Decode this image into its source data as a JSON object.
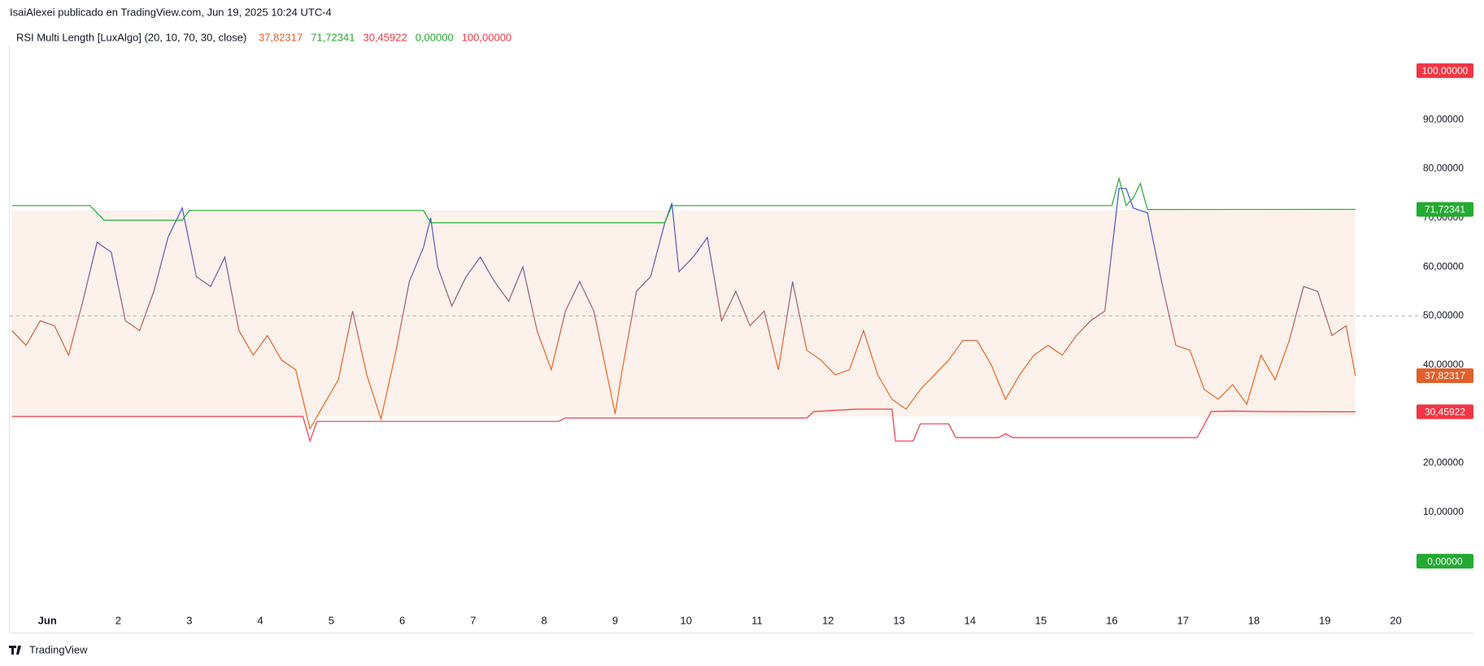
{
  "header": "IsaiAlexei publicado en TradingView.com, Jun 19, 2025 10:24 UTC-4",
  "footer": "TradingView",
  "chart_data": {
    "type": "line",
    "title": "RSI Multi Length [LuxAlgo] (20, 10, 70, 30, close)",
    "xlim": [
      0.47,
      20.2
    ],
    "xticks": [
      {
        "value": 1,
        "label": "Jun"
      },
      2,
      3,
      4,
      5,
      6,
      7,
      8,
      9,
      10,
      11,
      12,
      13,
      14,
      15,
      16,
      17,
      18,
      19,
      20
    ],
    "ylim": [
      -10.1,
      103.8
    ],
    "yticks": [
      {
        "value": 10,
        "label": "10,00000"
      },
      {
        "value": 20,
        "label": "20,00000"
      },
      {
        "value": 30,
        "label": "30,00000"
      },
      {
        "value": 40,
        "label": "40,00000"
      },
      {
        "value": 50,
        "label": "50,00000"
      },
      {
        "value": 60,
        "label": "60,00000"
      },
      {
        "value": 70,
        "label": "70,00000"
      },
      {
        "value": 80,
        "label": "80,00000"
      },
      {
        "value": 90,
        "label": "90,00000"
      }
    ],
    "midline": 50,
    "levels": [
      {
        "value": 100,
        "label": "100,00000",
        "color": "#f23645"
      },
      {
        "value": 0,
        "label": "0,00000",
        "color": "#22ab30"
      }
    ],
    "series": [
      {
        "color": "#e0602a",
        "last_value_label": "37,82317",
        "x": [
          0.5,
          0.7,
          0.9,
          1.1,
          1.3,
          1.5,
          1.7,
          1.9,
          2.1,
          2.3,
          2.5,
          2.7,
          2.9,
          3.1,
          3.3,
          3.5,
          3.7,
          3.9,
          4.1,
          4.3,
          4.5,
          4.7,
          4.9,
          5.1,
          5.3,
          5.5,
          5.7,
          5.9,
          6.1,
          6.3,
          6.4,
          6.5,
          6.7,
          6.9,
          7.1,
          7.3,
          7.5,
          7.7,
          7.9,
          8.1,
          8.3,
          8.5,
          8.7,
          8.9,
          9.0,
          9.1,
          9.3,
          9.5,
          9.7,
          9.8,
          9.9,
          10.1,
          10.3,
          10.5,
          10.7,
          10.9,
          11.1,
          11.3,
          11.5,
          11.7,
          11.9,
          12.1,
          12.3,
          12.5,
          12.7,
          12.9,
          13.1,
          13.3,
          13.5,
          13.7,
          13.9,
          14.1,
          14.3,
          14.5,
          14.7,
          14.9,
          15.1,
          15.3,
          15.5,
          15.7,
          15.9,
          16.1,
          16.2,
          16.3,
          16.5,
          16.7,
          16.9,
          17.1,
          17.3,
          17.5,
          17.7,
          17.9,
          18.1,
          18.3,
          18.5,
          18.7,
          18.9,
          19.1,
          19.3,
          19.43
        ],
        "values": [
          47,
          44,
          49,
          48,
          42,
          53,
          65,
          63,
          49,
          47,
          55,
          66,
          72,
          58,
          56,
          62,
          47,
          42,
          46,
          41,
          39,
          27,
          32,
          37,
          51,
          38,
          29,
          42,
          57,
          64,
          70,
          60,
          52,
          58,
          62,
          57,
          53,
          60,
          47,
          39,
          51,
          57,
          51,
          37,
          30,
          39,
          55,
          58,
          69,
          73,
          59,
          62,
          66,
          49,
          55,
          48,
          51,
          39,
          57,
          43,
          41,
          38,
          39,
          47,
          38,
          33,
          31,
          35,
          38,
          41,
          45,
          45,
          40,
          33,
          38,
          42,
          44,
          42,
          46,
          49,
          51,
          76,
          76,
          72,
          71,
          57,
          44,
          43,
          35,
          33,
          36,
          32,
          42,
          37,
          45,
          56,
          55,
          46,
          48,
          37.82317
        ]
      },
      {
        "color": "#22ab30",
        "last_value_label": "71,72341",
        "x": [
          0.5,
          1.6,
          1.8,
          2.9,
          3.0,
          6.3,
          6.4,
          9.7,
          9.8,
          16.0,
          16.1,
          16.2,
          16.3,
          16.4,
          16.5,
          19.43
        ],
        "values": [
          72.5,
          72.5,
          69.5,
          69.5,
          71.5,
          71.5,
          69,
          69,
          72.5,
          72.5,
          78,
          72.5,
          74,
          77,
          71.7,
          71.72341
        ]
      },
      {
        "color": "#f23645",
        "last_value_label": "30,45922",
        "x": [
          0.5,
          4.6,
          4.7,
          4.8,
          5.6,
          5.7,
          8.2,
          8.3,
          9.0,
          11.7,
          11.8,
          12.4,
          12.9,
          12.95,
          13.2,
          13.3,
          13.7,
          13.8,
          14.4,
          14.5,
          14.6,
          17.2,
          17.4,
          17.7,
          18.2,
          19.43
        ],
        "values": [
          29.5,
          29.5,
          24.5,
          28.5,
          28.5,
          28.5,
          28.5,
          29.2,
          29.2,
          29.2,
          30.5,
          31,
          31,
          24.5,
          24.5,
          28,
          28,
          25.2,
          25.2,
          26,
          25.2,
          25.2,
          30.5,
          30.6,
          30.5,
          30.45922
        ]
      }
    ]
  }
}
